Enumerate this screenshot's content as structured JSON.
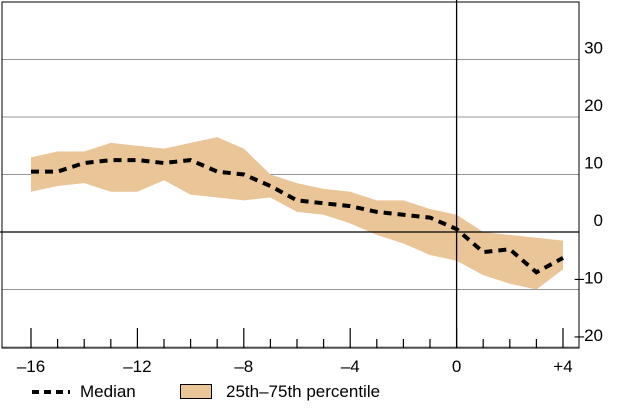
{
  "chart_data": {
    "type": "line",
    "title": "",
    "xlabel": "",
    "ylabel": "",
    "xlim": [
      -17,
      5
    ],
    "ylim": [
      -22,
      39
    ],
    "x_ticks": [
      -16,
      -12,
      -8,
      -4,
      0,
      4
    ],
    "x_tick_labels": [
      "–16",
      "–12",
      "–8",
      "–4",
      "0",
      "+4"
    ],
    "y_ticks": [
      -20,
      -10,
      0,
      10,
      20,
      30
    ],
    "y_tick_labels": [
      "–20",
      "–10",
      "0",
      "10",
      "20",
      "30"
    ],
    "grid": "horizontal",
    "legend_position": "bottom",
    "colors": {
      "band": "#e9c598",
      "median": "#000000",
      "axis": "#000000",
      "grid": "#000000"
    },
    "x": [
      -16,
      -15,
      -14,
      -13,
      -12,
      -11,
      -10,
      -9,
      -8,
      -7,
      -6,
      -5,
      -4,
      -3,
      -2,
      -1,
      0,
      1,
      2,
      3,
      4
    ],
    "series": [
      {
        "name": "Median",
        "style": "dashed",
        "values": [
          10.5,
          10.5,
          12,
          12.5,
          12.5,
          12,
          12.5,
          10.5,
          10,
          8,
          5.5,
          5,
          4.5,
          3.5,
          3,
          2.5,
          0.5,
          -3.5,
          -3,
          -7,
          -4.5
        ]
      },
      {
        "name": "25th–75th percentile",
        "style": "band",
        "lower": [
          7,
          8,
          8.5,
          7,
          7,
          9,
          6.5,
          6,
          5.5,
          6,
          3.5,
          3,
          1.5,
          -0.5,
          -2,
          -4,
          -5,
          -7.5,
          -9,
          -10,
          -6.5
        ],
        "upper": [
          13,
          14,
          14,
          15.5,
          15,
          14.5,
          15.5,
          16.5,
          14.5,
          10,
          8.5,
          7.5,
          7,
          5.5,
          5.5,
          4,
          3,
          0,
          -0.5,
          -1,
          -1.5
        ]
      }
    ]
  }
}
